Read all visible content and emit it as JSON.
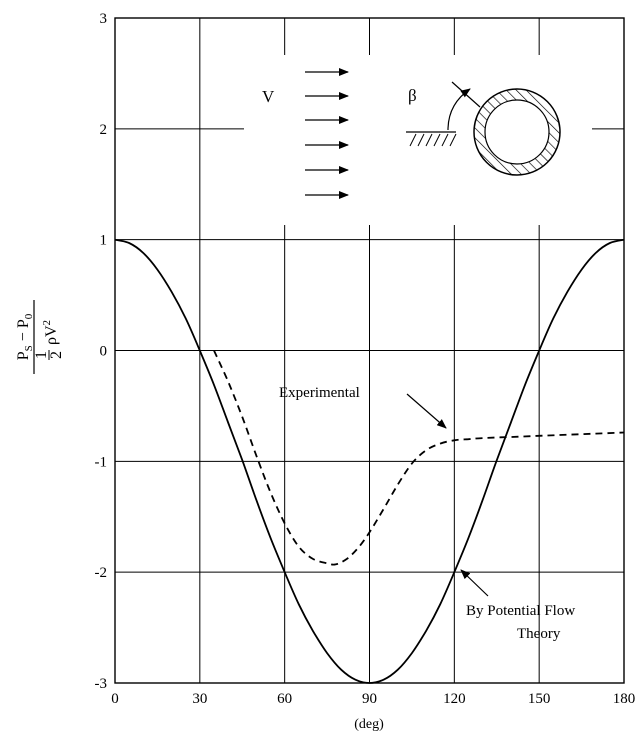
{
  "chart_data": {
    "type": "line",
    "title": "",
    "xlabel": "(deg)",
    "ylabel": {
      "numerator": "P",
      "numerator_sub_1": "S",
      "numerator_mid": " − P",
      "numerator_sub_2": "0",
      "half_num": "1",
      "half_den": "2",
      "denominator_rest": "ρV",
      "denominator_sup": "2"
    },
    "xlim": [
      0,
      180
    ],
    "ylim": [
      -3,
      3
    ],
    "xticks": [
      0,
      30,
      60,
      90,
      120,
      150,
      180
    ],
    "yticks": [
      -3,
      -2,
      -1,
      0,
      1,
      2,
      3
    ],
    "grid": true,
    "series": [
      {
        "name": "By Potential Flow Theory",
        "style": "solid",
        "x": [
          0,
          5,
          10,
          15,
          20,
          25,
          30,
          35,
          40,
          45,
          50,
          55,
          60,
          65,
          70,
          75,
          80,
          85,
          90,
          95,
          100,
          105,
          110,
          115,
          120,
          125,
          130,
          135,
          140,
          145,
          150,
          155,
          160,
          165,
          170,
          175,
          180
        ],
        "y": [
          1.0,
          0.97,
          0.88,
          0.73,
          0.53,
          0.29,
          0.0,
          -0.31,
          -0.65,
          -0.99,
          -1.35,
          -1.69,
          -2.0,
          -2.29,
          -2.53,
          -2.73,
          -2.88,
          -2.97,
          -3.0,
          -2.97,
          -2.88,
          -2.73,
          -2.53,
          -2.29,
          -2.0,
          -1.69,
          -1.35,
          -0.99,
          -0.65,
          -0.31,
          0.0,
          0.29,
          0.53,
          0.73,
          0.88,
          0.97,
          1.0
        ]
      },
      {
        "name": "Experimental",
        "style": "dashed",
        "x": [
          35,
          40,
          45,
          50,
          55,
          60,
          65,
          70,
          75,
          78,
          82,
          86,
          90,
          95,
          100,
          105,
          110,
          115,
          120,
          125,
          130,
          140,
          150,
          160,
          170,
          180
        ],
        "y": [
          0.0,
          -0.28,
          -0.6,
          -0.95,
          -1.28,
          -1.56,
          -1.77,
          -1.88,
          -1.92,
          -1.93,
          -1.88,
          -1.78,
          -1.64,
          -1.43,
          -1.21,
          -1.02,
          -0.9,
          -0.84,
          -0.81,
          -0.8,
          -0.79,
          -0.78,
          -0.77,
          -0.76,
          -0.75,
          -0.74
        ]
      }
    ],
    "annotations": {
      "experimental": "Experimental",
      "potential_line1": "By Potential Flow",
      "potential_line2": "Theory",
      "flow_symbol": "V",
      "angle_symbol": "β"
    }
  }
}
